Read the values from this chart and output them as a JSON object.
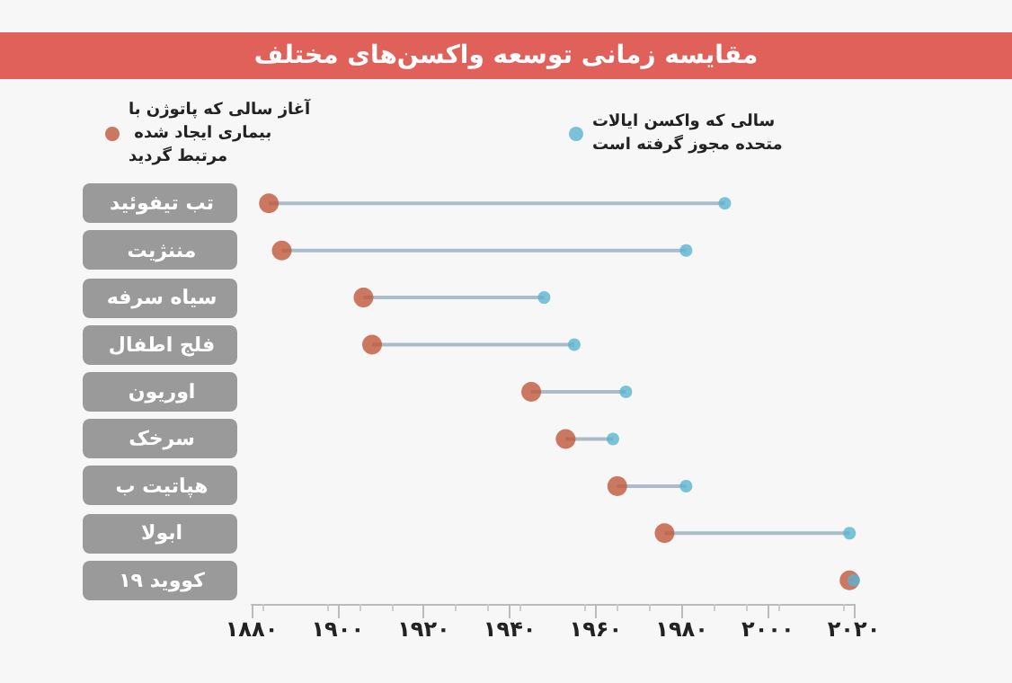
{
  "chart_data": {
    "type": "scatter",
    "title": "مقایسه زمانی توسعه واکسن‌های مختلف",
    "categories": [
      "تب تیفوئید",
      "مننژیت",
      "سیاه سرفه",
      "فلج اطفال",
      "اوریون",
      "سرخک",
      "هپاتیت ب",
      "ابولا",
      "کووید ۱۹"
    ],
    "orientation": "horizontal",
    "series": [
      {
        "name": "آغاز سالی که پاتوژن با بیماری ایجاد شده مرتبط گردید",
        "color": "#c0563a",
        "values": [
          1884,
          1887,
          1906,
          1908,
          1945,
          1953,
          1965,
          1976,
          2019
        ]
      },
      {
        "name": "سالی که واکسن ایالات متحده مجوز گرفته است",
        "color": "#5ab4cf",
        "values": [
          1990,
          1981,
          1948,
          1955,
          1967,
          1964,
          1981,
          2019,
          2020
        ]
      }
    ],
    "xlim": [
      1880,
      2020
    ],
    "xticks": [
      {
        "value": 1880,
        "label": "۱۸۸۰"
      },
      {
        "value": 1900,
        "label": "۱۹۰۰"
      },
      {
        "value": 1920,
        "label": "۱۹۲۰"
      },
      {
        "value": 1940,
        "label": "۱۹۴۰"
      },
      {
        "value": 1960,
        "label": "۱۹۶۰"
      },
      {
        "value": 1980,
        "label": "۱۹۸۰"
      },
      {
        "value": 2000,
        "label": "۲۰۰۰"
      },
      {
        "value": 2020,
        "label": "۲۰۲۰"
      }
    ],
    "grid": false,
    "legend": "top",
    "marker": "circle"
  }
}
